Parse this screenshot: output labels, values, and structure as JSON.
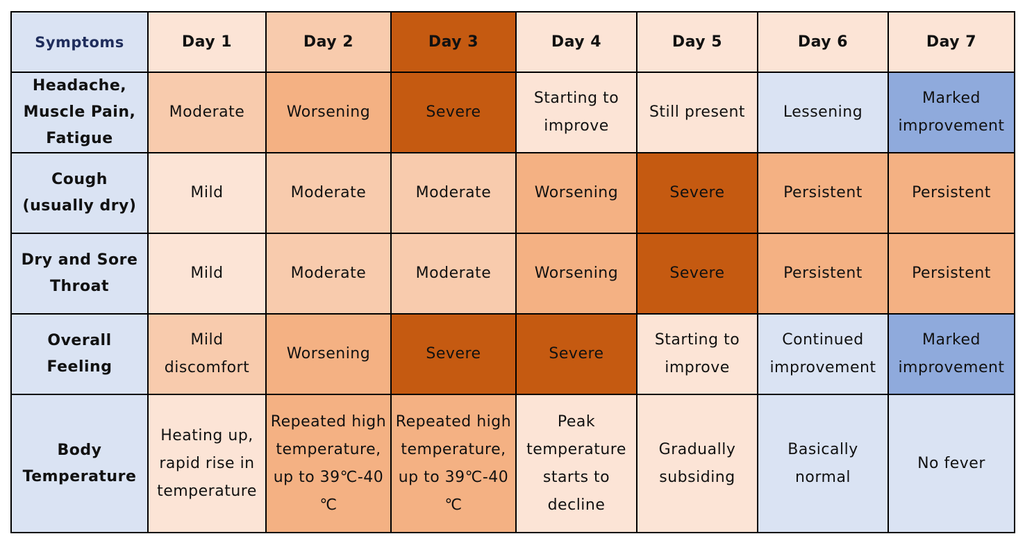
{
  "table": {
    "header": [
      "Symptoms",
      "Day 1",
      "Day 2",
      "Day 3",
      "Day 4",
      "Day 5",
      "Day 6",
      "Day 7"
    ],
    "rows": [
      [
        "Headache, Muscle Pain, Fatigue",
        "Moderate",
        "Worsening",
        "Severe",
        "Starting to improve",
        "Still present",
        "Lessening",
        "Marked improvement"
      ],
      [
        "Cough (usually dry)",
        "Mild",
        "Moderate",
        "Moderate",
        "Worsening",
        "Severe",
        "Persistent",
        "Persistent"
      ],
      [
        "Dry and Sore Throat",
        "Mild",
        "Moderate",
        "Moderate",
        "Worsening",
        "Severe",
        "Persistent",
        "Persistent"
      ],
      [
        "Overall Feeling",
        "Mild discomfort",
        "Worsening",
        "Severe",
        "Severe",
        "Starting to improve",
        "Continued improvement",
        "Marked improvement"
      ],
      [
        "Body Temperature",
        "Heating up, rapid rise in temperature",
        "Repeated high temperature, up to 39℃-40 ℃",
        "Repeated high temperature, up to 39℃-40 ℃",
        "Peak temperature starts to decline",
        "Gradually subsiding",
        "Basically normal",
        "No fever"
      ]
    ]
  }
}
